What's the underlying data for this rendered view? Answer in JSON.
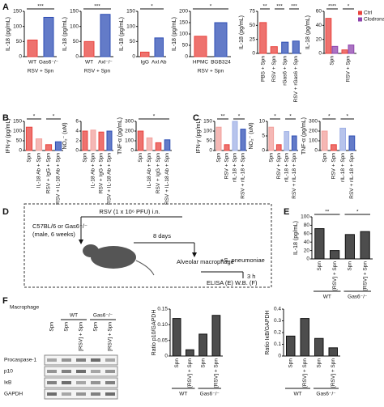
{
  "panel_labels": [
    "A",
    "B",
    "C",
    "D",
    "E",
    "F"
  ],
  "chart_data": [
    {
      "type": "bar",
      "ylabel": "IL-18 (pg/mL)",
      "categories": [
        "WT",
        "Gas6⁻/⁻"
      ],
      "values": [
        55,
        130
      ],
      "colors": [
        "#e8433d",
        "#2f4fb5"
      ],
      "ylim": [
        0,
        150
      ],
      "yticks": [
        0,
        50,
        100,
        150
      ],
      "sig": [
        "***"
      ],
      "xlabel": "RSV + Spn"
    },
    {
      "type": "bar",
      "ylabel": "IL-18 (pg/mL)",
      "categories": [
        "WT",
        "Axl⁻/⁻"
      ],
      "values": [
        50,
        140
      ],
      "colors": [
        "#e8433d",
        "#2f4fb5"
      ],
      "ylim": [
        0,
        150
      ],
      "yticks": [
        0,
        50,
        100,
        150
      ],
      "sig": [
        "***"
      ],
      "xlabel": "RSV + Spn"
    },
    {
      "type": "bar",
      "ylabel": "IL-18 (pg/mL)",
      "categories": [
        "IgG",
        "Axl Ab"
      ],
      "values": [
        15,
        62
      ],
      "colors": [
        "#e8433d",
        "#2f4fb5"
      ],
      "ylim": [
        0,
        150
      ],
      "yticks": [
        0,
        50,
        100,
        150
      ],
      "sig": [
        "*"
      ]
    },
    {
      "type": "bar",
      "ylabel": "IL-18 (pg/mL)",
      "categories": [
        "HPMC",
        "BGB324"
      ],
      "values": [
        90,
        150
      ],
      "colors": [
        "#e8433d",
        "#2f4fb5"
      ],
      "ylim": [
        0,
        200
      ],
      "yticks": [
        0,
        50,
        100,
        150,
        200
      ],
      "sig": [
        "*"
      ],
      "xlabel": "RSV + Spn"
    },
    {
      "type": "bar",
      "ylabel": "IL-18 (pg/mL)",
      "categories": [
        "PBS + Spn",
        "RSV + Spn",
        "rGas6 + Spn",
        "RSV + rGas6 + Spn"
      ],
      "values": [
        55,
        12,
        20,
        22
      ],
      "colors": [
        "#e8433d",
        "#e8433d",
        "#2f4fb5",
        "#2f4fb5"
      ],
      "ylim": [
        0,
        75
      ],
      "yticks": [
        0,
        25,
        50,
        75
      ],
      "sig": [
        "**",
        "***",
        "***"
      ]
    },
    {
      "type": "bar",
      "ylabel": "IL-18 (pg/mL)",
      "categories": [
        "Spn",
        "RSV + Spn"
      ],
      "series": [
        {
          "name": "Ctrl",
          "color": "#e8433d",
          "values": [
            50,
            5
          ]
        },
        {
          "name": "Clodronate",
          "color": "#8e44ad",
          "values": [
            10,
            12
          ]
        }
      ],
      "ylim": [
        0,
        60
      ],
      "yticks": [
        0,
        20,
        40,
        60
      ],
      "sig": [
        "****",
        "*"
      ]
    },
    {
      "type": "bar",
      "ylabel": "IFN-γ (pg/mL)",
      "categories": [
        "Spn",
        "IL-18 Ab + Spn",
        "RSV + IgG + Spn",
        "RSV + IL-18 Ab + Spn"
      ],
      "values": [
        120,
        60,
        30,
        45
      ],
      "colors": [
        "#e8433d",
        "#f2a09c",
        "#e8433d",
        "#2f4fb5"
      ],
      "ylim": [
        0,
        150
      ],
      "yticks": [
        0,
        50,
        100,
        150
      ],
      "sig": [
        "*",
        "*"
      ]
    },
    {
      "type": "bar",
      "ylabel": "NO₂⁻ (uM)",
      "categories": [
        "Spn",
        "IL-18 Ab + Spn",
        "RSV + IgG + Spn",
        "RSV + IL-18 Ab + Spn"
      ],
      "values": [
        4,
        4.2,
        3.8,
        4
      ],
      "colors": [
        "#e8433d",
        "#f2a09c",
        "#e8433d",
        "#2f4fb5"
      ],
      "ylim": [
        0,
        6
      ],
      "yticks": [
        0,
        2,
        4,
        6
      ]
    },
    {
      "type": "bar",
      "ylabel": "TNF-α (pg/mL)",
      "categories": [
        "Spn",
        "IL-18 Ab + Spn",
        "RSV + IgG + Spn",
        "RSV + IL-18 Ab + Spn"
      ],
      "values": [
        200,
        130,
        80,
        110
      ],
      "colors": [
        "#e8433d",
        "#f2a09c",
        "#e8433d",
        "#2f4fb5"
      ],
      "ylim": [
        0,
        300
      ],
      "yticks": [
        0,
        100,
        200,
        300
      ],
      "sig": [
        "*"
      ]
    },
    {
      "type": "bar",
      "ylabel": "IFN-γ (pg/mL)",
      "categories": [
        "Spn",
        "RSV + Spn",
        "rIL-18 + Spn",
        "RSV + rIL-18 + Spn"
      ],
      "values": [
        120,
        30,
        150,
        110
      ],
      "colors": [
        "#f2a09c",
        "#e8433d",
        "#9fb0e6",
        "#2f4fb5"
      ],
      "ylim": [
        0,
        150
      ],
      "yticks": [
        0,
        50,
        100,
        150
      ],
      "sig": [
        "**",
        "*"
      ]
    },
    {
      "type": "bar",
      "ylabel": "NO₂⁻ (uM)",
      "categories": [
        "Spn",
        "RSV + Spn",
        "rIL-18 + Spn",
        "RSV + rIL-18 + Spn"
      ],
      "values": [
        8,
        2,
        6.5,
        5
      ],
      "colors": [
        "#f2a09c",
        "#e8433d",
        "#9fb0e6",
        "#2f4fb5"
      ],
      "ylim": [
        0,
        10
      ],
      "yticks": [
        0,
        5,
        10
      ],
      "sig": [
        "*",
        "*"
      ]
    },
    {
      "type": "bar",
      "ylabel": "TNF-α (pg/mL)",
      "categories": [
        "Spn",
        "RSV + Spn",
        "rIL-18 + Spn",
        "RSV + rIL-18 + Spn"
      ],
      "values": [
        200,
        60,
        230,
        150
      ],
      "colors": [
        "#f2a09c",
        "#e8433d",
        "#9fb0e6",
        "#2f4fb5"
      ],
      "ylim": [
        0,
        300
      ],
      "yticks": [
        0,
        100,
        200,
        300
      ],
      "sig": [
        "*",
        "*"
      ]
    },
    {
      "type": "bar",
      "ylabel": "IL-18 (pg/mL)",
      "categories": [
        "Spn",
        "[RSV] + Spn",
        "Spn",
        "[RSV] + Spn"
      ],
      "values": [
        72,
        20,
        58,
        65
      ],
      "colors": [
        "#111111",
        "#111111",
        "#111111",
        "#111111"
      ],
      "ylim": [
        0,
        100
      ],
      "yticks": [
        0,
        20,
        40,
        60,
        80,
        100
      ],
      "sig": [
        "**",
        "*"
      ],
      "groups": [
        "WT",
        "Gas6⁻/⁻"
      ]
    },
    {
      "type": "bar",
      "ylabel": "Ratio p10/GAPDH",
      "categories": [
        "Spn",
        "[RSV] + Spn",
        "Spn",
        "[RSV] + Spn"
      ],
      "values": [
        0.12,
        0.02,
        0.07,
        0.13
      ],
      "colors": [
        "#111111",
        "#111111",
        "#111111",
        "#111111"
      ],
      "ylim": [
        0,
        0.15
      ],
      "yticks": [
        0,
        0.05,
        {
          "value": 0.1,
          "label": "0.10"
        },
        0.15
      ],
      "groups": [
        "WT",
        "Gas6⁻/⁻"
      ]
    },
    {
      "type": "bar",
      "ylabel": "Ratio IκB/GAPDH",
      "categories": [
        "Spn",
        "[RSV] + Spn",
        "Spn",
        "[RSV] + Spn"
      ],
      "values": [
        0.17,
        0.32,
        0.15,
        0.07
      ],
      "colors": [
        "#111111",
        "#111111",
        "#111111",
        "#111111"
      ],
      "ylim": [
        0,
        0.4
      ],
      "yticks": [
        0,
        0.1,
        0.2,
        0.3,
        0.4
      ],
      "groups": [
        "WT",
        "Gas6⁻/⁻"
      ]
    }
  ],
  "diagram": {
    "infection": "RSV (1 x 10⁶ PFU) i.n.",
    "mouse": "C57BL/6 or Gas6⁻/⁻",
    "mouse_detail": "(male, 6 weeks)",
    "interval": "8 days",
    "cell": "Alveolar macrophage",
    "stimulus": "+S. pneumoniae",
    "time": "3 h",
    "readout": "ELISA (E) W.B. (F)"
  },
  "blot": {
    "header": "Macrophage",
    "groups": [
      "WT",
      "Gas6⁻/⁻"
    ],
    "lanes": [
      "Spn",
      "Spn",
      "[RSV] + Spn",
      "Spn",
      "[RSV] + Spn"
    ],
    "rows": [
      "Procaspase-1",
      "p10",
      "IκB",
      "GAPDH"
    ]
  }
}
